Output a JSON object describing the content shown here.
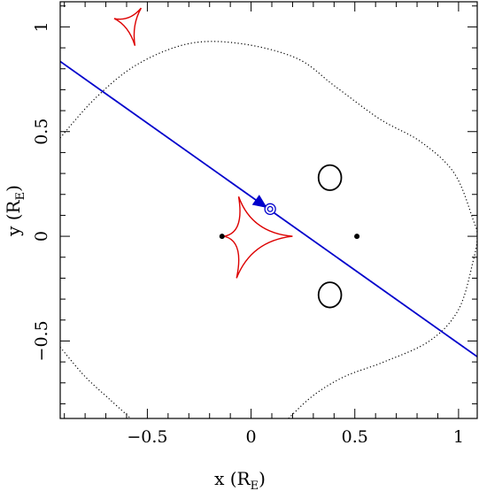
{
  "chart_data": {
    "type": "line",
    "title": "",
    "xlabel": "x (R",
    "xlabel_sub": "E",
    "xlabel_close": ")",
    "ylabel": "y (R",
    "ylabel_sub": "E",
    "ylabel_close": ")",
    "xlim": [
      -0.92,
      1.09
    ],
    "ylim": [
      -0.87,
      1.12
    ],
    "xticks": [
      -0.5,
      0,
      0.5,
      1
    ],
    "xtick_labels": [
      "−0.5",
      "0",
      "0.5",
      "1"
    ],
    "yticks": [
      -0.5,
      0,
      0.5,
      1
    ],
    "ytick_labels": [
      "−0.5",
      "0",
      "0.5",
      "1"
    ],
    "grid": false,
    "colors": {
      "trajectory": "#0000cc",
      "caustic": "#dd0000",
      "curves": "#000000"
    },
    "lenses": [
      {
        "x": -0.14,
        "y": 0.0
      },
      {
        "x": 0.51,
        "y": 0.0
      }
    ],
    "trajectory": {
      "points": [
        [
          -0.92,
          0.835
        ],
        [
          1.09,
          -0.575
        ]
      ],
      "arrow_at": [
        0.05,
        0.155
      ],
      "source": [
        0.092,
        0.13
      ]
    },
    "caustics": [
      {
        "points": [
          [
            -0.66,
            1.04
          ],
          [
            -0.53,
            1.09
          ],
          [
            -0.56,
            0.91
          ]
        ]
      },
      {
        "points": [
          [
            -0.06,
            0.19
          ],
          [
            0.2,
            0.0
          ],
          [
            -0.07,
            -0.2
          ],
          [
            -0.13,
            0.0
          ]
        ]
      }
    ],
    "critical_ovals": [
      {
        "cx": 0.38,
        "cy": 0.28,
        "rx": 0.055,
        "ry": 0.06
      },
      {
        "cx": 0.38,
        "cy": -0.28,
        "rx": 0.055,
        "ry": 0.06
      }
    ],
    "outer_curve": [
      [
        -0.92,
        0.47
      ],
      [
        -0.75,
        0.66
      ],
      [
        -0.55,
        0.82
      ],
      [
        -0.3,
        0.92
      ],
      [
        -0.05,
        0.92
      ],
      [
        0.22,
        0.85
      ],
      [
        0.4,
        0.72
      ],
      [
        0.62,
        0.56
      ],
      [
        0.82,
        0.45
      ],
      [
        0.98,
        0.3
      ],
      [
        1.07,
        0.08
      ],
      [
        1.09,
        0.0
      ],
      [
        1.07,
        -0.12
      ],
      [
        1.0,
        -0.35
      ],
      [
        0.86,
        -0.5
      ],
      [
        0.64,
        -0.6
      ],
      [
        0.45,
        -0.67
      ],
      [
        0.3,
        -0.76
      ],
      [
        0.18,
        -0.87
      ]
    ],
    "outer_curve_lower_left": [
      [
        -0.92,
        -0.53
      ],
      [
        -0.8,
        -0.67
      ],
      [
        -0.68,
        -0.78
      ],
      [
        -0.58,
        -0.87
      ]
    ]
  }
}
